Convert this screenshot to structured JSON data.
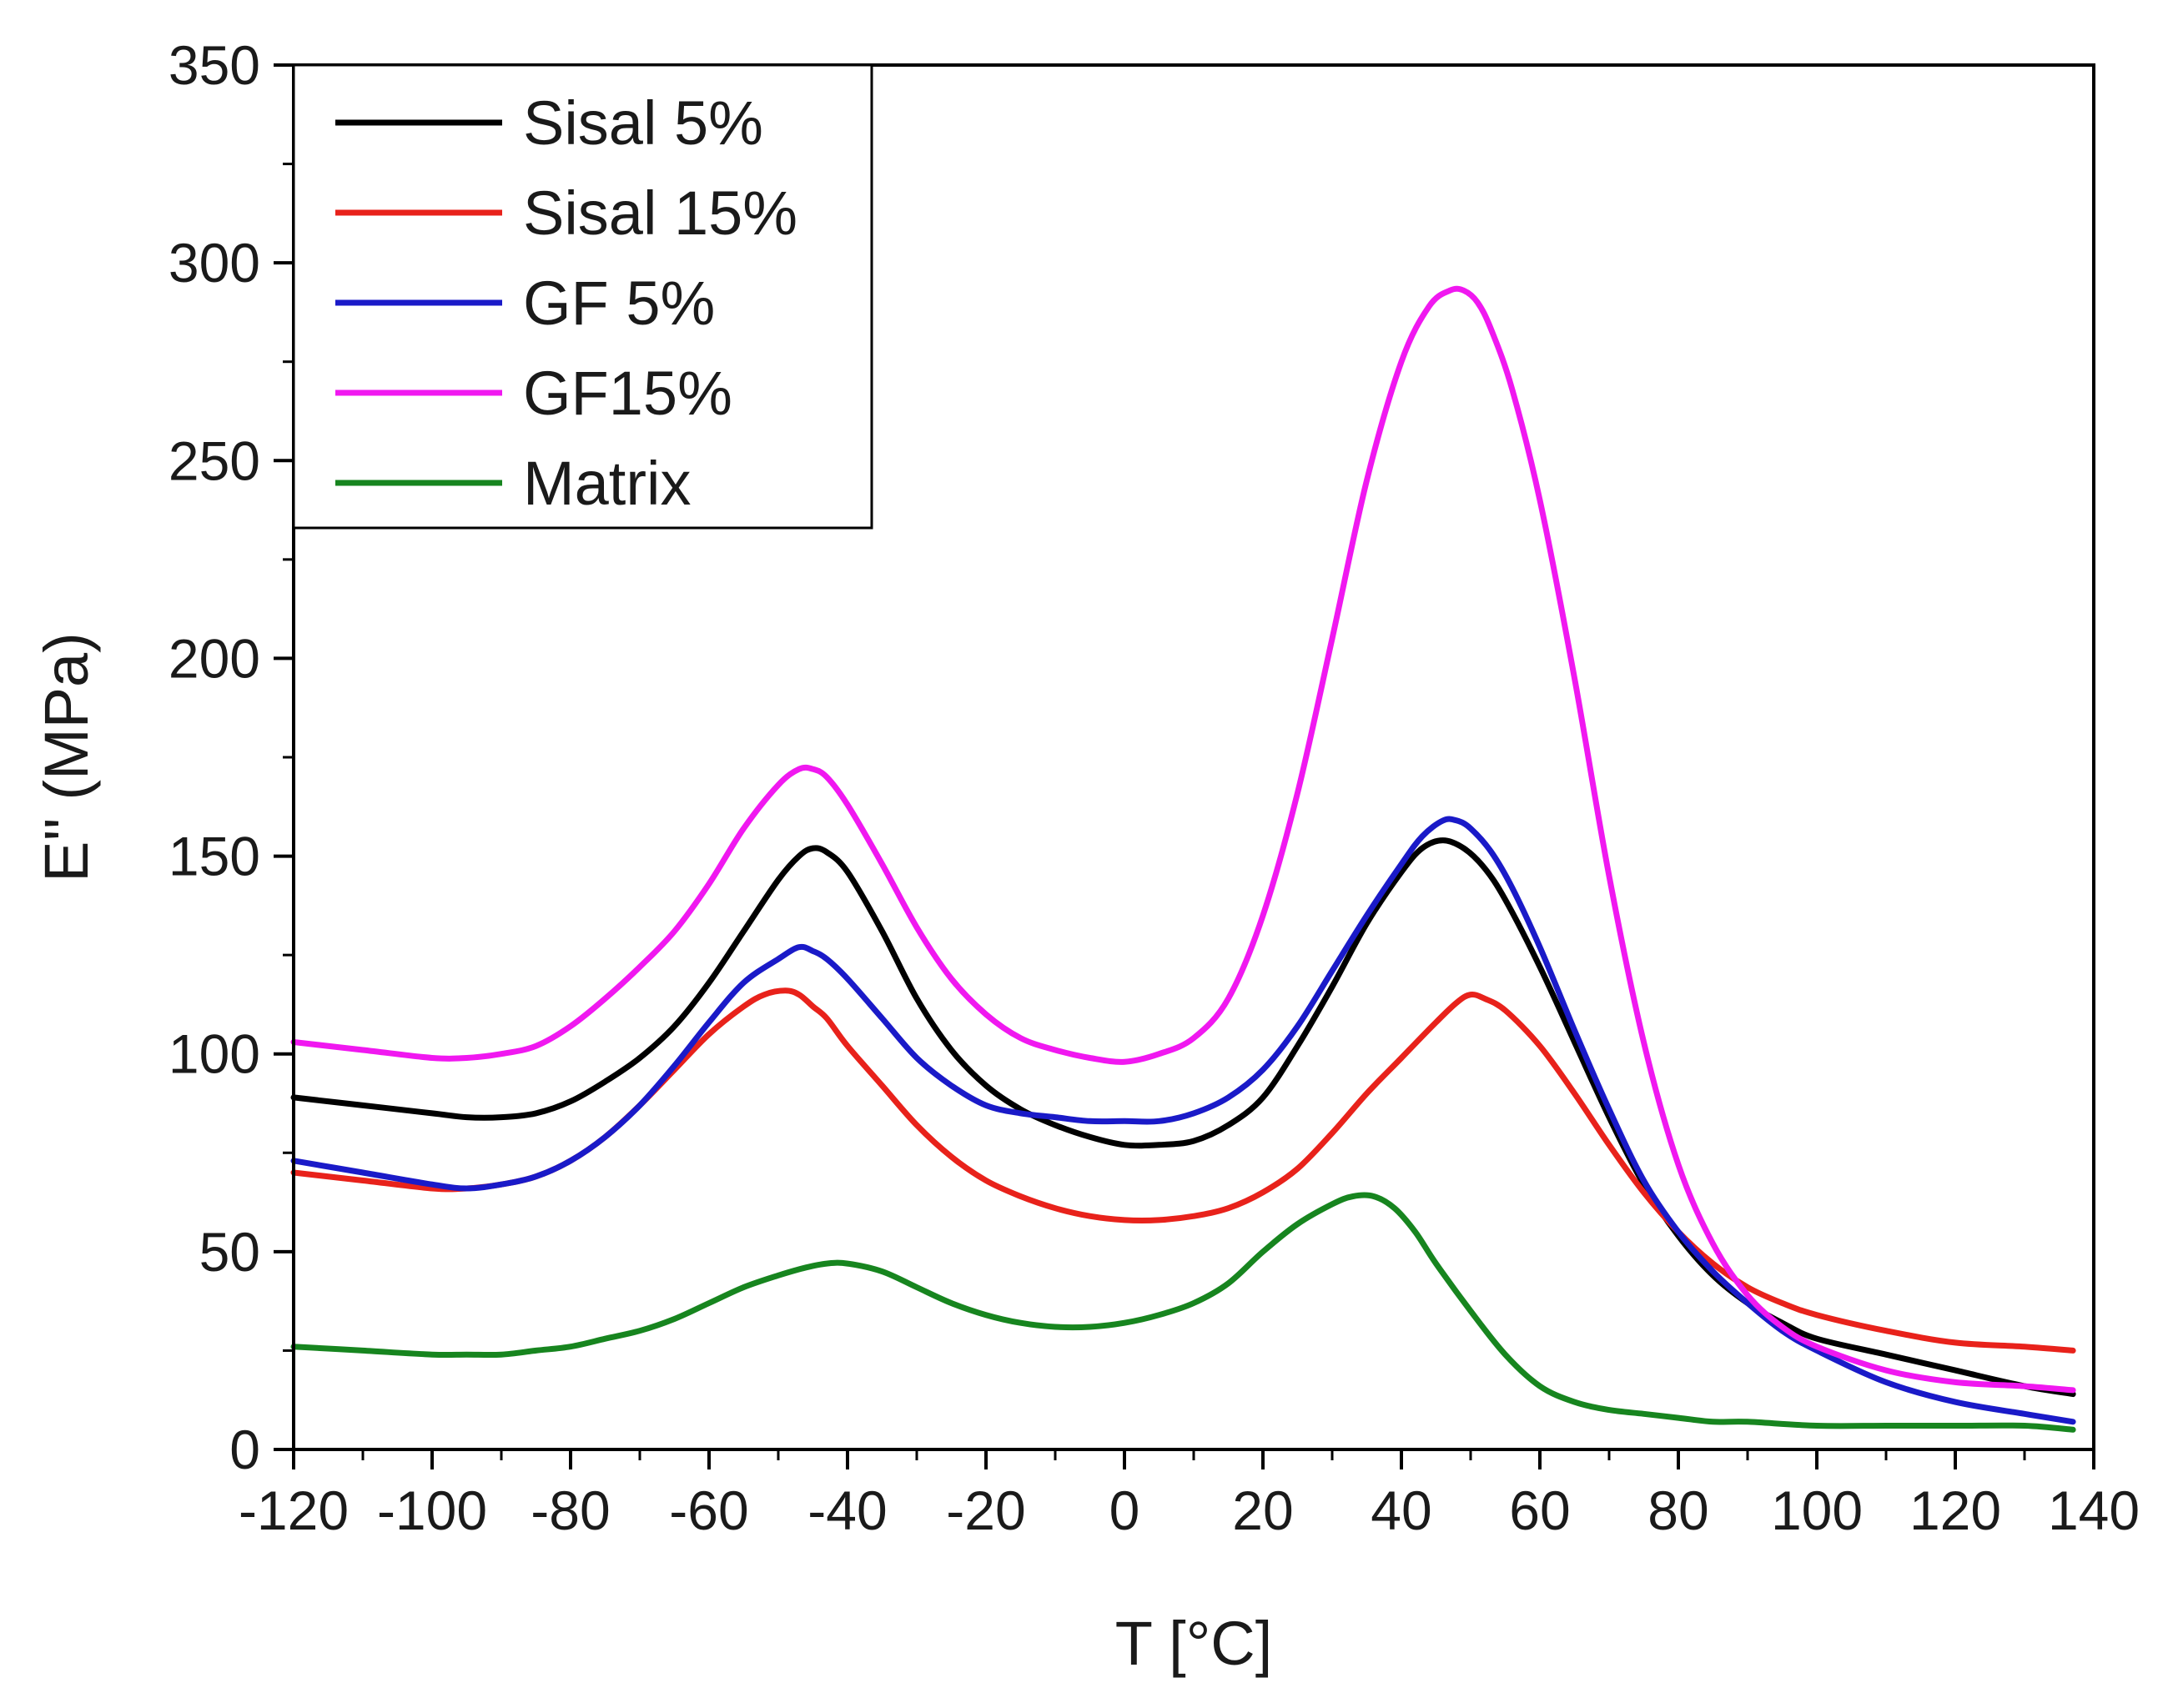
{
  "chart_data": {
    "type": "line",
    "title": "",
    "xlabel": "T [°C]",
    "ylabel": "E'' (MPa)",
    "xlim": [
      -120,
      140
    ],
    "ylim": [
      0,
      350
    ],
    "x_ticks": [
      -120,
      -100,
      -80,
      -60,
      -40,
      -20,
      0,
      20,
      40,
      60,
      80,
      100,
      120,
      140
    ],
    "x_tick_labels": [
      "-120",
      "-100",
      "-80",
      "-60",
      "-40",
      "-20",
      "0",
      "20",
      "40",
      "60",
      "80",
      "100",
      "120",
      "140"
    ],
    "y_ticks": [
      0,
      50,
      100,
      150,
      200,
      250,
      300,
      350
    ],
    "y_tick_labels": [
      "0",
      "50",
      "100",
      "150",
      "200",
      "250",
      "300",
      "350"
    ],
    "grid": false,
    "legend_position": "top-left",
    "series": [
      {
        "name": "Sisal 5%",
        "color": "#000000",
        "x": [
          -120,
          -110,
          -100,
          -95,
          -90,
          -85,
          -80,
          -75,
          -70,
          -65,
          -60,
          -55,
          -50,
          -47,
          -45,
          -43,
          -40,
          -35,
          -30,
          -25,
          -20,
          -15,
          -10,
          -5,
          0,
          5,
          10,
          15,
          20,
          25,
          30,
          35,
          40,
          43,
          46,
          49,
          52,
          55,
          60,
          65,
          70,
          75,
          80,
          85,
          90,
          95,
          100,
          110,
          120,
          130,
          137
        ],
        "values": [
          89,
          87,
          85,
          84,
          84,
          85,
          88,
          93,
          99,
          107,
          118,
          131,
          144,
          150,
          152,
          151,
          146,
          131,
          114,
          101,
          92,
          86,
          82,
          79,
          77,
          77,
          78,
          82,
          89,
          102,
          117,
          133,
          146,
          152,
          154,
          152,
          147,
          139,
          122,
          103,
          84,
          67,
          54,
          44,
          37,
          32,
          28,
          24,
          20,
          16,
          14
        ]
      },
      {
        "name": "Sisal 15%",
        "color": "#e8221b",
        "x": [
          -120,
          -110,
          -100,
          -95,
          -90,
          -85,
          -80,
          -75,
          -70,
          -65,
          -60,
          -55,
          -52,
          -49,
          -47,
          -45,
          -43,
          -40,
          -35,
          -30,
          -25,
          -20,
          -15,
          -10,
          -5,
          0,
          5,
          10,
          15,
          20,
          25,
          30,
          35,
          40,
          45,
          48,
          50,
          52,
          55,
          60,
          65,
          70,
          75,
          80,
          85,
          90,
          95,
          100,
          110,
          120,
          130,
          137
        ],
        "values": [
          70,
          68,
          66,
          66,
          67,
          69,
          73,
          79,
          87,
          96,
          105,
          112,
          115,
          116,
          115,
          112,
          109,
          102,
          92,
          82,
          74,
          68,
          64,
          61,
          59,
          58,
          58,
          59,
          61,
          65,
          71,
          80,
          90,
          99,
          108,
          113,
          115,
          114,
          111,
          102,
          90,
          77,
          65,
          55,
          47,
          41,
          37,
          34,
          30,
          27,
          26,
          25
        ]
      },
      {
        "name": "GF 5%",
        "color": "#1a1ac8",
        "x": [
          -120,
          -110,
          -100,
          -95,
          -90,
          -85,
          -80,
          -75,
          -70,
          -65,
          -60,
          -55,
          -50,
          -47,
          -45,
          -43,
          -40,
          -35,
          -30,
          -25,
          -20,
          -15,
          -10,
          -5,
          0,
          5,
          10,
          15,
          20,
          25,
          30,
          35,
          40,
          43,
          46,
          48,
          50,
          53,
          56,
          60,
          65,
          70,
          75,
          80,
          85,
          90,
          95,
          100,
          110,
          120,
          130,
          137
        ],
        "values": [
          73,
          70,
          67,
          66,
          67,
          69,
          73,
          79,
          87,
          97,
          108,
          118,
          124,
          127,
          126,
          124,
          119,
          109,
          99,
          92,
          87,
          85,
          84,
          83,
          83,
          83,
          85,
          89,
          96,
          107,
          121,
          135,
          148,
          155,
          159,
          159,
          157,
          151,
          142,
          127,
          106,
          86,
          68,
          55,
          45,
          37,
          30,
          25,
          17,
          12,
          9,
          7
        ]
      },
      {
        "name": "GF15%",
        "color": "#f018f0",
        "x": [
          -120,
          -110,
          -100,
          -95,
          -90,
          -85,
          -80,
          -75,
          -70,
          -65,
          -60,
          -55,
          -50,
          -47,
          -45,
          -43,
          -40,
          -35,
          -30,
          -25,
          -20,
          -15,
          -10,
          -5,
          0,
          5,
          10,
          15,
          20,
          25,
          30,
          35,
          40,
          44,
          47,
          49,
          51,
          53,
          56,
          60,
          65,
          70,
          75,
          80,
          85,
          90,
          95,
          100,
          110,
          120,
          130,
          137
        ],
        "values": [
          103,
          101,
          99,
          99,
          100,
          102,
          107,
          114,
          122,
          131,
          143,
          157,
          168,
          172,
          172,
          170,
          163,
          148,
          132,
          119,
          110,
          104,
          101,
          99,
          98,
          100,
          104,
          114,
          135,
          166,
          205,
          245,
          275,
          289,
          293,
          293,
          290,
          283,
          268,
          240,
          195,
          145,
          103,
          72,
          52,
          39,
          31,
          26,
          20,
          17,
          16,
          15
        ]
      },
      {
        "name": "Matrix",
        "color": "#17851f",
        "x": [
          -120,
          -110,
          -100,
          -95,
          -90,
          -85,
          -80,
          -75,
          -70,
          -65,
          -60,
          -55,
          -50,
          -46,
          -43,
          -40,
          -35,
          -30,
          -25,
          -20,
          -15,
          -10,
          -5,
          0,
          5,
          10,
          15,
          20,
          25,
          30,
          33,
          36,
          39,
          42,
          45,
          50,
          55,
          60,
          65,
          70,
          75,
          80,
          85,
          90,
          100,
          110,
          120,
          130,
          137
        ],
        "values": [
          26,
          25,
          24,
          24,
          24,
          25,
          26,
          28,
          30,
          33,
          37,
          41,
          44,
          46,
          47,
          47,
          45,
          41,
          37,
          34,
          32,
          31,
          31,
          32,
          34,
          37,
          42,
          50,
          57,
          62,
          64,
          64,
          61,
          55,
          47,
          35,
          24,
          16,
          12,
          10,
          9,
          8,
          7,
          7,
          6,
          6,
          6,
          6,
          5
        ]
      }
    ]
  }
}
